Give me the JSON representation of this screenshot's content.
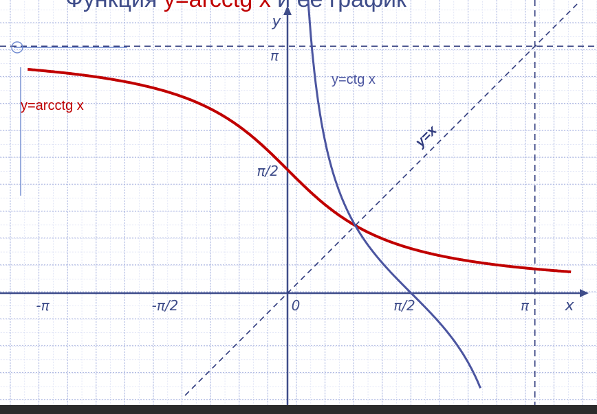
{
  "title": {
    "prefix": "Функция ",
    "highlight": "y=arcctg x",
    "suffix": " и ее график"
  },
  "chart_data": {
    "type": "line",
    "xlim": [
      -3.3,
      3.5
    ],
    "ylim": [
      -1.4,
      3.4
    ],
    "grid": true,
    "x_ticks": [
      {
        "value": -3.14159,
        "label": "-π"
      },
      {
        "value": -1.5708,
        "label": "-π/2"
      },
      {
        "value": 0.15,
        "label": "0"
      },
      {
        "value": 1.5708,
        "label": "π/2"
      },
      {
        "value": 3.14159,
        "label": "π"
      }
    ],
    "y_ticks": [
      {
        "value": 3.14159,
        "label": "π"
      },
      {
        "value": 1.5708,
        "label": "π/2"
      }
    ],
    "xlabel": "x",
    "ylabel": "y",
    "series": [
      {
        "name": "y=arcctg x",
        "color": "#c00000",
        "function": "arcctg",
        "x_range": [
          -3.3,
          3.6
        ]
      },
      {
        "name": "y=ctg x",
        "color": "#4b55a0",
        "function": "ctg",
        "x_range": [
          0.22,
          2.45
        ]
      },
      {
        "name": "y=x",
        "color": "#2f3a7d",
        "function": "identity",
        "dashed": true,
        "x_range": [
          -1.3,
          3.7
        ]
      }
    ],
    "guides": [
      {
        "type": "horizontal",
        "y": 3.14159,
        "dashed": true
      },
      {
        "type": "vertical",
        "x": 3.14159,
        "dashed": true
      }
    ]
  },
  "colors": {
    "grid": "#a9b4df",
    "axis": "#3f4d8a",
    "red": "#c00000",
    "blue": "#4b55a0"
  }
}
